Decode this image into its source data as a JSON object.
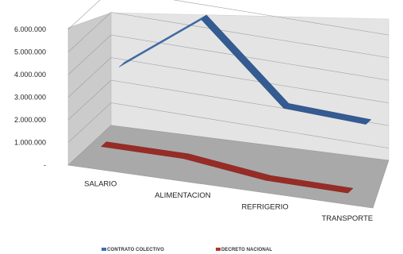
{
  "chart_data": {
    "type": "line",
    "style": "3d-ribbon",
    "categories": [
      "SALARIO",
      "ALIMENTACION",
      "REFRIGERIO",
      "TRANSPORTE"
    ],
    "series": [
      {
        "name": "CONTRATO COLECTIVO",
        "color": "#3f6fb2",
        "values": [
          3400000,
          6000000,
          2600000,
          2400000
        ]
      },
      {
        "name": "DECRETO NACIONAL",
        "color": "#b8362e",
        "values": [
          620000,
          600000,
          150000,
          100000
        ]
      }
    ],
    "y_ticks": [
      "6.000.000",
      "5.000.000",
      "4.000.000",
      "3.000.000",
      "2.000.000",
      "1.000.000",
      "-"
    ],
    "y_tick_values": [
      6000000,
      5000000,
      4000000,
      3000000,
      2000000,
      1000000,
      0
    ],
    "ylim": [
      0,
      6000000
    ],
    "grid": true,
    "legend_position": "bottom"
  }
}
